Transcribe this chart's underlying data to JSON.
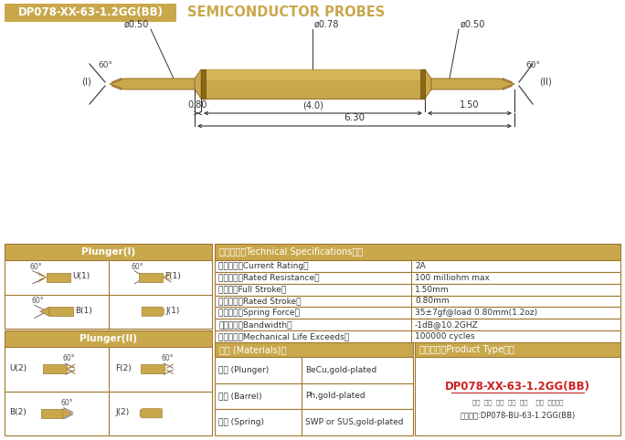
{
  "title_box_text": "DP078-XX-63-1.2GG(BB)",
  "title_box_color": "#C9A84C",
  "title_text": "SEMICONDUCTOR PROBES",
  "title_color": "#C9A84C",
  "bg_color": "#FFFFFF",
  "probe_gold": "#C9A84C",
  "probe_dark": "#A07830",
  "probe_light": "#E0C060",
  "dim_color": "#333333",
  "table_header_color": "#C9A84C",
  "table_border_color": "#A07830",
  "specs": [
    [
      "额定电流（Current Rating）",
      "2A"
    ],
    [
      "额定电阵（Rated Resistance）",
      "100 milliohm max"
    ],
    [
      "满行程（Full Stroke）",
      "1.50mm"
    ],
    [
      "额定行程（Rated Stroke）",
      "0.80mm"
    ],
    [
      "额定弹力（Spring Force）",
      "35±7gf@load 0.80mm(1.2oz)"
    ],
    [
      "频率带宽（Bandwidth）",
      "-1dB@10.2GHZ"
    ],
    [
      "测试寿命（Mechanical Life Exceeds）",
      "100000 cycles"
    ]
  ],
  "materials": [
    [
      "针头 (Plunger)",
      "BeCu,gold-plated"
    ],
    [
      "针管 (Barrel)",
      "Ph,gold-plated"
    ],
    [
      "弹簧 (Spring)",
      "SWP or SUS,gold-plated"
    ]
  ],
  "product_type_title": "成品型号（Product Type）：",
  "product_type_code": "DP078-XX-63-1.2GG(BB)",
  "product_type_labels": "系列  规格  头型  总长  弹力    镀金  针头材质",
  "product_type_order": "订购单例:DP078-BU-63-1.2GG(BB)",
  "dims": {
    "d_barrel": "ø0.78",
    "d_tip_left": "ø0.50",
    "d_tip_right": "ø0.50",
    "len_total": "6.30",
    "len_barrel": "(4.0)",
    "len_left": "0.80",
    "len_right": "1.50"
  }
}
